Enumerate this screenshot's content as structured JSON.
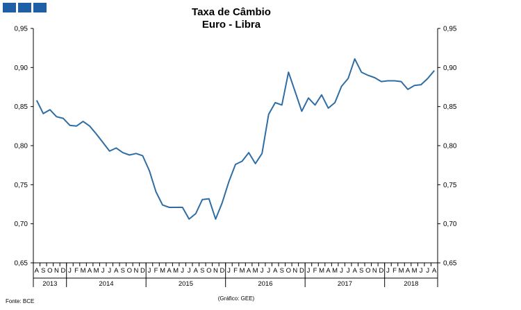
{
  "chart_data": {
    "type": "line",
    "title": "Taxa de Câmbio",
    "subtitle": "Euro - Libra",
    "ylim": [
      0.65,
      0.95
    ],
    "yticks": [
      "0,65",
      "0,70",
      "0,75",
      "0,80",
      "0,85",
      "0,90",
      "0,95"
    ],
    "ytick_values": [
      0.65,
      0.7,
      0.75,
      0.8,
      0.85,
      0.9,
      0.95
    ],
    "months": [
      "A",
      "S",
      "O",
      "N",
      "D",
      "J",
      "F",
      "M",
      "A",
      "M",
      "J",
      "J",
      "A",
      "S",
      "O",
      "N",
      "D",
      "J",
      "F",
      "M",
      "A",
      "M",
      "J",
      "J",
      "A",
      "S",
      "O",
      "N",
      "D",
      "J",
      "F",
      "M",
      "A",
      "M",
      "J",
      "J",
      "A",
      "S",
      "O",
      "N",
      "D",
      "J",
      "F",
      "M",
      "A",
      "M",
      "J",
      "J",
      "A",
      "S",
      "O",
      "N",
      "D",
      "J",
      "F",
      "M",
      "A",
      "M",
      "J",
      "J",
      "A"
    ],
    "years": [
      {
        "label": "2013",
        "start": 0,
        "count": 5
      },
      {
        "label": "2014",
        "start": 5,
        "count": 12
      },
      {
        "label": "2015",
        "start": 17,
        "count": 12
      },
      {
        "label": "2016",
        "start": 29,
        "count": 12
      },
      {
        "label": "2017",
        "start": 41,
        "count": 12
      },
      {
        "label": "2018",
        "start": 53,
        "count": 8
      }
    ],
    "series": [
      {
        "name": "Euro - Libra",
        "color": "#2e6da4",
        "values": [
          0.858,
          0.841,
          0.846,
          0.837,
          0.835,
          0.826,
          0.825,
          0.831,
          0.825,
          0.815,
          0.804,
          0.793,
          0.797,
          0.791,
          0.788,
          0.79,
          0.787,
          0.768,
          0.741,
          0.724,
          0.721,
          0.721,
          0.721,
          0.706,
          0.713,
          0.731,
          0.732,
          0.706,
          0.727,
          0.754,
          0.776,
          0.78,
          0.791,
          0.777,
          0.79,
          0.84,
          0.855,
          0.852,
          0.894,
          0.869,
          0.844,
          0.861,
          0.852,
          0.865,
          0.848,
          0.855,
          0.876,
          0.886,
          0.911,
          0.894,
          0.89,
          0.887,
          0.882,
          0.883,
          0.883,
          0.882,
          0.872,
          0.877,
          0.878,
          0.886,
          0.896
        ]
      }
    ],
    "source": "Fonte: BCE",
    "credit": "(Gráfico: GEE)"
  }
}
